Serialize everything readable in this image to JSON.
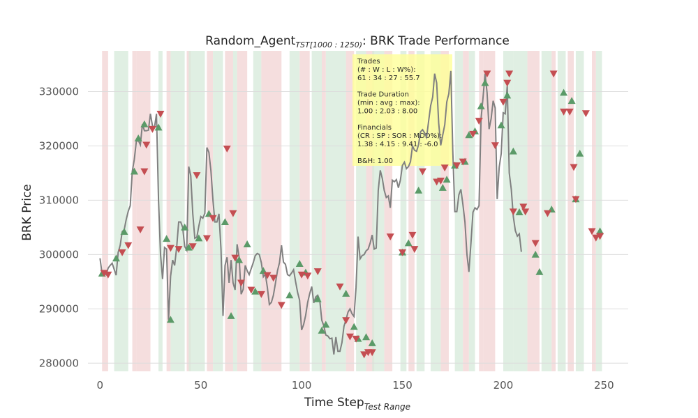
{
  "chart_data": {
    "type": "line",
    "title_main": "Random_Agent",
    "title_sub": "TST[1000 : 1250)",
    "title_tail": ": BRK Trade Performance",
    "xlabel_main": "Time Step",
    "xlabel_sub": "Test Range",
    "ylabel": "BRK Price",
    "xlim": [
      -6,
      262
    ],
    "ylim": [
      278500,
      337500
    ],
    "xticks": [
      0,
      50,
      100,
      150,
      200,
      250
    ],
    "yticks": [
      280000,
      290000,
      300000,
      310000,
      320000,
      330000
    ],
    "grid": true,
    "colors": {
      "price_line": "#808080",
      "buy_marker": "#5b9a68",
      "sell_marker": "#c44e52",
      "win_band": "#d6ead9",
      "loss_band": "#f2d3d3",
      "info_box": "#ffff99"
    },
    "price_series": [
      [
        0,
        299300
      ],
      [
        1,
        296500
      ],
      [
        2,
        296600
      ],
      [
        3,
        296300
      ],
      [
        4,
        297500
      ],
      [
        5,
        298000
      ],
      [
        6,
        298400
      ],
      [
        7,
        297300
      ],
      [
        8,
        296200
      ],
      [
        9,
        300400
      ],
      [
        10,
        301700
      ],
      [
        11,
        304200
      ],
      [
        12,
        304600
      ],
      [
        13,
        306500
      ],
      [
        14,
        308000
      ],
      [
        15,
        309000
      ],
      [
        16,
        315300
      ],
      [
        17,
        317500
      ],
      [
        18,
        320800
      ],
      [
        19,
        321000
      ],
      [
        20,
        320200
      ],
      [
        21,
        324000
      ],
      [
        22,
        322800
      ],
      [
        23,
        322800
      ],
      [
        24,
        322900
      ],
      [
        25,
        325900
      ],
      [
        26,
        323700
      ],
      [
        27,
        323400
      ],
      [
        28,
        325900
      ],
      [
        29,
        310000
      ],
      [
        30,
        300000
      ],
      [
        31,
        295500
      ],
      [
        32,
        301300
      ],
      [
        33,
        301000
      ],
      [
        34,
        288000
      ],
      [
        35,
        296000
      ],
      [
        36,
        299000
      ],
      [
        37,
        298000
      ],
      [
        38,
        301300
      ],
      [
        39,
        306000
      ],
      [
        40,
        306000
      ],
      [
        41,
        305000
      ],
      [
        42,
        301500
      ],
      [
        43,
        300800
      ],
      [
        44,
        316200
      ],
      [
        45,
        314500
      ],
      [
        46,
        307500
      ],
      [
        47,
        303000
      ],
      [
        48,
        303200
      ],
      [
        49,
        305200
      ],
      [
        50,
        307000
      ],
      [
        51,
        306700
      ],
      [
        52,
        307600
      ],
      [
        53,
        319700
      ],
      [
        54,
        318800
      ],
      [
        55,
        315400
      ],
      [
        56,
        310000
      ],
      [
        57,
        306000
      ],
      [
        58,
        306000
      ],
      [
        59,
        307500
      ],
      [
        60,
        301000
      ],
      [
        61,
        288700
      ],
      [
        62,
        298000
      ],
      [
        63,
        299500
      ],
      [
        64,
        294800
      ],
      [
        65,
        299000
      ],
      [
        66,
        294800
      ],
      [
        67,
        293500
      ],
      [
        68,
        301900
      ],
      [
        69,
        299500
      ],
      [
        70,
        292700
      ],
      [
        71,
        293600
      ],
      [
        72,
        298000
      ],
      [
        73,
        297000
      ],
      [
        74,
        296300
      ],
      [
        75,
        297400
      ],
      [
        76,
        298500
      ],
      [
        77,
        299800
      ],
      [
        78,
        300200
      ],
      [
        79,
        300000
      ],
      [
        80,
        298500
      ],
      [
        81,
        295900
      ],
      [
        82,
        296400
      ],
      [
        83,
        294000
      ],
      [
        84,
        290800
      ],
      [
        85,
        291200
      ],
      [
        86,
        292500
      ],
      [
        87,
        294700
      ],
      [
        88,
        297000
      ],
      [
        89,
        298500
      ],
      [
        90,
        301700
      ],
      [
        91,
        298600
      ],
      [
        92,
        298200
      ],
      [
        93,
        296300
      ],
      [
        94,
        296100
      ],
      [
        95,
        296600
      ],
      [
        96,
        297200
      ],
      [
        97,
        295000
      ],
      [
        98,
        293000
      ],
      [
        99,
        291600
      ],
      [
        100,
        286100
      ],
      [
        101,
        287100
      ],
      [
        102,
        288800
      ],
      [
        103,
        291200
      ],
      [
        104,
        292800
      ],
      [
        105,
        294100
      ],
      [
        106,
        291100
      ],
      [
        107,
        292200
      ],
      [
        108,
        292500
      ],
      [
        109,
        291600
      ],
      [
        110,
        287900
      ],
      [
        111,
        286900
      ],
      [
        112,
        285200
      ],
      [
        113,
        285000
      ],
      [
        114,
        284500
      ],
      [
        115,
        284600
      ],
      [
        116,
        281600
      ],
      [
        117,
        284800
      ],
      [
        118,
        282200
      ],
      [
        119,
        282200
      ],
      [
        120,
        283800
      ],
      [
        121,
        286800
      ],
      [
        122,
        288000
      ],
      [
        123,
        289400
      ],
      [
        124,
        290000
      ],
      [
        125,
        289100
      ],
      [
        126,
        288600
      ],
      [
        127,
        294000
      ],
      [
        128,
        303300
      ],
      [
        129,
        299200
      ],
      [
        130,
        299800
      ],
      [
        131,
        300000
      ],
      [
        132,
        300700
      ],
      [
        133,
        301000
      ],
      [
        134,
        302100
      ],
      [
        135,
        303600
      ],
      [
        136,
        301000
      ],
      [
        137,
        301200
      ],
      [
        138,
        311800
      ],
      [
        139,
        315500
      ],
      [
        140,
        314000
      ],
      [
        141,
        311800
      ],
      [
        142,
        310500
      ],
      [
        143,
        310800
      ],
      [
        144,
        308600
      ],
      [
        145,
        313700
      ],
      [
        146,
        313400
      ],
      [
        147,
        313800
      ],
      [
        148,
        312300
      ],
      [
        149,
        313700
      ],
      [
        150,
        316400
      ],
      [
        151,
        317000
      ],
      [
        152,
        315800
      ],
      [
        153,
        316200
      ],
      [
        154,
        317100
      ],
      [
        155,
        320000
      ],
      [
        156,
        319200
      ],
      [
        157,
        319000
      ],
      [
        158,
        320200
      ],
      [
        159,
        322600
      ],
      [
        160,
        323000
      ],
      [
        161,
        322400
      ],
      [
        162,
        321600
      ],
      [
        163,
        324600
      ],
      [
        164,
        327400
      ],
      [
        165,
        329000
      ],
      [
        166,
        333300
      ],
      [
        167,
        331600
      ],
      [
        168,
        324200
      ],
      [
        169,
        320100
      ],
      [
        170,
        322000
      ],
      [
        171,
        323900
      ],
      [
        172,
        328100
      ],
      [
        173,
        329600
      ],
      [
        174,
        333800
      ],
      [
        175,
        319100
      ],
      [
        176,
        307900
      ],
      [
        177,
        307900
      ],
      [
        178,
        311000
      ],
      [
        179,
        312000
      ],
      [
        180,
        309200
      ],
      [
        181,
        306000
      ],
      [
        182,
        300000
      ],
      [
        183,
        296800
      ],
      [
        184,
        302100
      ],
      [
        185,
        307800
      ],
      [
        186,
        308600
      ],
      [
        187,
        308300
      ],
      [
        188,
        309000
      ],
      [
        189,
        325000
      ],
      [
        190,
        329000
      ],
      [
        191,
        333300
      ],
      [
        192,
        329800
      ],
      [
        193,
        323100
      ],
      [
        194,
        325000
      ],
      [
        195,
        328300
      ],
      [
        196,
        327000
      ],
      [
        197,
        310200
      ],
      [
        198,
        316100
      ],
      [
        199,
        318600
      ],
      [
        200,
        326100
      ],
      [
        201,
        325900
      ],
      [
        202,
        331000
      ],
      [
        203,
        315000
      ],
      [
        204,
        312000
      ],
      [
        205,
        307000
      ],
      [
        206,
        304400
      ],
      [
        207,
        303400
      ],
      [
        208,
        303800
      ],
      [
        209,
        300500
      ]
    ],
    "buys": [
      [
        1,
        296500
      ],
      [
        8,
        299300
      ],
      [
        12,
        304200
      ],
      [
        17,
        315300
      ],
      [
        19,
        321400
      ],
      [
        22,
        324000
      ],
      [
        29,
        323400
      ],
      [
        33,
        302900
      ],
      [
        35,
        288000
      ],
      [
        42,
        305000
      ],
      [
        44,
        301300
      ],
      [
        49,
        303000
      ],
      [
        54,
        307500
      ],
      [
        62,
        306000
      ],
      [
        65,
        288700
      ],
      [
        69,
        299000
      ],
      [
        73,
        301900
      ],
      [
        77,
        293200
      ],
      [
        81,
        297000
      ],
      [
        94,
        292500
      ],
      [
        99,
        298300
      ],
      [
        102,
        296700
      ],
      [
        108,
        291800
      ],
      [
        110,
        286000
      ],
      [
        112,
        287100
      ],
      [
        122,
        292800
      ],
      [
        126,
        286700
      ],
      [
        128,
        284500
      ],
      [
        132,
        284800
      ],
      [
        135,
        283700
      ],
      [
        150,
        300400
      ],
      [
        153,
        302100
      ],
      [
        158,
        311800
      ],
      [
        170,
        312300
      ],
      [
        172,
        313800
      ],
      [
        176,
        316400
      ],
      [
        181,
        317100
      ],
      [
        183,
        322000
      ],
      [
        186,
        322700
      ],
      [
        189,
        327300
      ],
      [
        191,
        331600
      ],
      [
        199,
        323800
      ],
      [
        202,
        329300
      ],
      [
        205,
        319000
      ],
      [
        208,
        307800
      ],
      [
        216,
        300000
      ],
      [
        218,
        296800
      ],
      [
        224,
        308300
      ],
      [
        230,
        329800
      ],
      [
        234,
        328300
      ],
      [
        236,
        310200
      ],
      [
        238,
        318600
      ],
      [
        248,
        304300
      ]
    ],
    "sells": [
      [
        2,
        296600
      ],
      [
        4,
        296300
      ],
      [
        11,
        300400
      ],
      [
        14,
        301700
      ],
      [
        20,
        304600
      ],
      [
        22,
        315300
      ],
      [
        23,
        320200
      ],
      [
        26,
        323100
      ],
      [
        30,
        325900
      ],
      [
        35,
        301200
      ],
      [
        39,
        301000
      ],
      [
        46,
        301500
      ],
      [
        48,
        314600
      ],
      [
        53,
        303000
      ],
      [
        56,
        306700
      ],
      [
        63,
        319500
      ],
      [
        66,
        307600
      ],
      [
        67,
        299400
      ],
      [
        70,
        294800
      ],
      [
        75,
        293500
      ],
      [
        80,
        292700
      ],
      [
        83,
        296200
      ],
      [
        86,
        295700
      ],
      [
        90,
        290700
      ],
      [
        100,
        296300
      ],
      [
        103,
        296100
      ],
      [
        108,
        296900
      ],
      [
        119,
        294100
      ],
      [
        122,
        287900
      ],
      [
        124,
        284900
      ],
      [
        127,
        284500
      ],
      [
        131,
        281600
      ],
      [
        133,
        282000
      ],
      [
        135,
        282000
      ],
      [
        144,
        303300
      ],
      [
        150,
        300400
      ],
      [
        155,
        303600
      ],
      [
        156,
        301000
      ],
      [
        160,
        315300
      ],
      [
        167,
        313400
      ],
      [
        169,
        313600
      ],
      [
        171,
        316000
      ],
      [
        177,
        316400
      ],
      [
        180,
        317100
      ],
      [
        185,
        322200
      ],
      [
        188,
        324600
      ],
      [
        192,
        333300
      ],
      [
        196,
        320100
      ],
      [
        200,
        328100
      ],
      [
        202,
        331600
      ],
      [
        203,
        333300
      ],
      [
        205,
        307900
      ],
      [
        210,
        308800
      ],
      [
        211,
        307900
      ],
      [
        216,
        302100
      ],
      [
        222,
        307600
      ],
      [
        225,
        333300
      ],
      [
        230,
        326300
      ],
      [
        233,
        326300
      ],
      [
        235,
        316100
      ],
      [
        236,
        310200
      ],
      [
        241,
        326000
      ],
      [
        244,
        304300
      ],
      [
        246,
        303100
      ],
      [
        248,
        303400
      ]
    ],
    "bands": [
      [
        1,
        4,
        "loss"
      ],
      [
        7,
        14,
        "win"
      ],
      [
        16,
        18,
        "loss"
      ],
      [
        18,
        25,
        "loss"
      ],
      [
        29,
        31,
        "win"
      ],
      [
        33,
        35,
        "loss"
      ],
      [
        35,
        42,
        "win"
      ],
      [
        43,
        45,
        "loss"
      ],
      [
        44,
        52,
        "win"
      ],
      [
        53,
        56,
        "loss"
      ],
      [
        56,
        61,
        "win"
      ],
      [
        62,
        66,
        "loss"
      ],
      [
        66,
        68,
        "win"
      ],
      [
        68,
        73,
        "loss"
      ],
      [
        76,
        80,
        "win"
      ],
      [
        80,
        90,
        "loss"
      ],
      [
        94,
        99,
        "win"
      ],
      [
        99,
        104,
        "loss"
      ],
      [
        105,
        110,
        "win"
      ],
      [
        110,
        112,
        "loss"
      ],
      [
        112,
        122,
        "win"
      ],
      [
        122,
        126,
        "loss"
      ],
      [
        127,
        132,
        "win"
      ],
      [
        132,
        136,
        "loss"
      ],
      [
        135,
        141,
        "win"
      ],
      [
        141,
        145,
        "loss"
      ],
      [
        149,
        152,
        "win"
      ],
      [
        153,
        156,
        "loss"
      ],
      [
        157,
        161,
        "win"
      ],
      [
        164,
        169,
        "win"
      ],
      [
        169,
        173,
        "loss"
      ],
      [
        176,
        180,
        "win"
      ],
      [
        180,
        183,
        "loss"
      ],
      [
        183,
        186,
        "win"
      ],
      [
        188,
        190,
        "loss"
      ],
      [
        190,
        196,
        "loss"
      ],
      [
        200,
        205,
        "win"
      ],
      [
        205,
        212,
        "win"
      ],
      [
        212,
        218,
        "loss"
      ],
      [
        219,
        224,
        "win"
      ],
      [
        224,
        226,
        "loss"
      ],
      [
        227,
        231,
        "win"
      ],
      [
        232,
        235,
        "loss"
      ],
      [
        236,
        240,
        "win"
      ],
      [
        244,
        246,
        "loss"
      ],
      [
        246,
        249,
        "win"
      ]
    ],
    "info_box": {
      "lines": [
        "Trades",
        "(# : W : L : W%):",
        "61 : 34 : 27 : 55.7",
        "",
        "Trade Duration",
        "(min : avg : max):",
        "1.00 : 2.03 : 8.00",
        "",
        "Financials",
        "(CR : SP : SOR : MDD%):",
        "1.38 : 4.15 : 9.41 : -6.0",
        "",
        "B&H: 1.00"
      ]
    }
  }
}
